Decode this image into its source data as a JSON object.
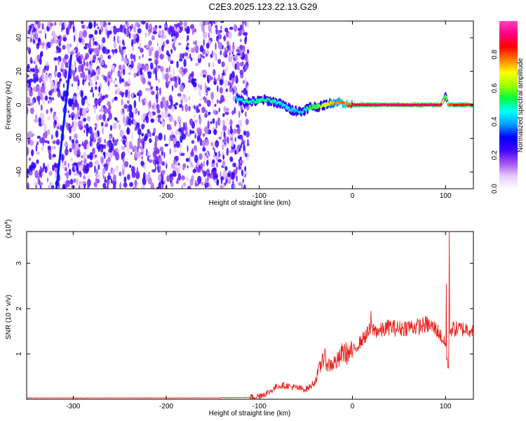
{
  "figure_title": "C2E3.2025.123.22.13.G29",
  "chart_data": [
    {
      "type": "heatmap",
      "xlabel": "Height of straight line (km)",
      "ylabel": "Frequency (Hz)",
      "xlim": [
        -350,
        130
      ],
      "ylim": [
        -50,
        50
      ],
      "xticks": [
        -300,
        -200,
        -100,
        0,
        100
      ],
      "yticks": [
        -40,
        -20,
        0,
        20,
        40
      ],
      "colorbar": {
        "label": "Normalized spectral amplitude",
        "range": [
          0,
          1
        ],
        "ticks": [
          "0.0",
          "0.2",
          "0.4",
          "0.6",
          "0.8"
        ],
        "colors": [
          "#ffffff",
          "#e6c8ff",
          "#a050f0",
          "#4000ff",
          "#0000ff",
          "#00a0ff",
          "#00ffff",
          "#00ff40",
          "#a0ff00",
          "#ffff00",
          "#ff8000",
          "#ff0000",
          "#ff0080",
          "#ff40c0"
        ]
      },
      "noise_region": {
        "x": [
          -350,
          -120
        ],
        "freq_spread": [
          -50,
          50
        ],
        "amplitude": 0.2
      },
      "signal_trace": {
        "x": [
          -125,
          -115,
          -105,
          -95,
          -85,
          -75,
          -65,
          -55,
          -45,
          -35,
          -25,
          -15,
          -5,
          0,
          20,
          40,
          60,
          80,
          95,
          98,
          100,
          103,
          110,
          130
        ],
        "y": [
          4,
          2,
          2,
          3,
          2,
          0,
          -3,
          -4,
          -1,
          -1,
          1,
          2,
          0,
          0,
          0,
          0,
          0,
          0,
          0,
          3,
          6,
          0,
          0,
          0
        ],
        "amplitude": [
          0.45,
          0.5,
          0.5,
          0.5,
          0.5,
          0.45,
          0.45,
          0.4,
          0.55,
          0.6,
          0.7,
          0.75,
          0.8,
          0.85,
          0.9,
          0.9,
          0.9,
          0.9,
          0.9,
          0.6,
          0.5,
          0.8,
          0.85,
          0.85
        ]
      }
    },
    {
      "type": "line",
      "xlabel": "Height of straight line (km)",
      "ylabel": "SNR (10 * v/v)",
      "multiplier": "(x10",
      "multiplier_exp": "4",
      "multiplier_close": ")",
      "xlim": [
        -350,
        130
      ],
      "ylim": [
        0,
        3.7
      ],
      "xticks": [
        -300,
        -200,
        -100,
        0,
        100
      ],
      "yticks": [
        1,
        2,
        3
      ],
      "series": [
        {
          "color": "#e8221c",
          "x": [
            -350,
            -300,
            -250,
            -200,
            -150,
            -110,
            -100,
            -90,
            -80,
            -70,
            -60,
            -50,
            -45,
            -40,
            -35,
            -30,
            -25,
            -20,
            -15,
            -10,
            -5,
            0,
            10,
            20,
            30,
            40,
            50,
            60,
            70,
            80,
            90,
            95,
            100,
            102,
            103,
            104,
            105,
            110,
            120,
            130
          ],
          "y": [
            0.03,
            0.03,
            0.03,
            0.03,
            0.03,
            0.04,
            0.08,
            0.15,
            0.3,
            0.3,
            0.25,
            0.22,
            0.28,
            0.4,
            0.7,
            0.9,
            0.75,
            0.8,
            0.85,
            1.05,
            1.0,
            1.05,
            1.3,
            1.55,
            1.5,
            1.6,
            1.55,
            1.6,
            1.6,
            1.65,
            1.55,
            1.4,
            1.2,
            0.85,
            0.6,
            1.3,
            1.55,
            1.55,
            1.55,
            1.55
          ],
          "peaks": [
            {
              "x": 104,
              "y": 3.7
            },
            {
              "x": 101,
              "y": 2.55
            },
            {
              "x": -32,
              "y": 1.0
            },
            {
              "x": 20,
              "y": 1.95
            }
          ]
        }
      ]
    }
  ]
}
